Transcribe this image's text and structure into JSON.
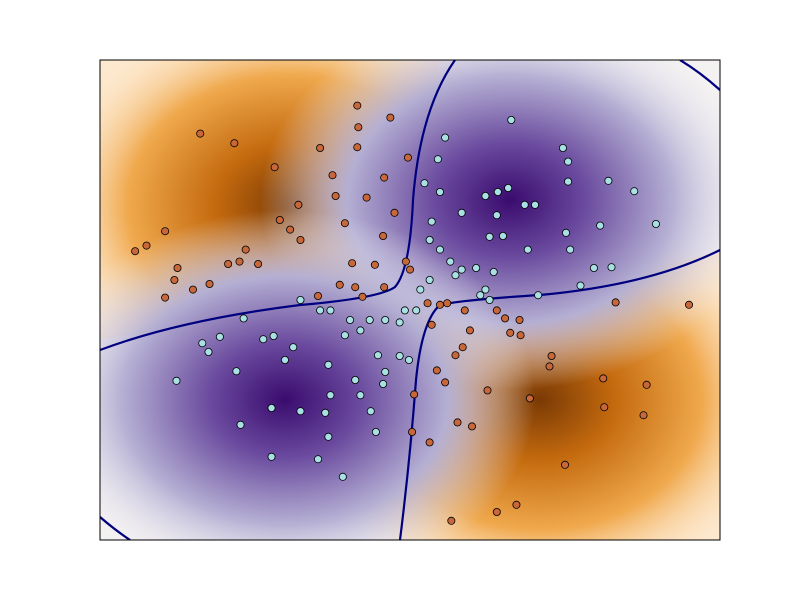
{
  "chart_data": {
    "type": "scatter",
    "xlim": [
      -3,
      3
    ],
    "ylim": [
      -3,
      3
    ],
    "series": [
      {
        "color": "#c8683a",
        "x": [
          -2.03,
          -1.7,
          -1.31,
          -0.87,
          -0.51,
          -0.5,
          -0.51,
          -0.19,
          -0.25,
          -0.02,
          -2.37,
          -2.66,
          -2.55,
          -2.25,
          -2.37,
          -2.28,
          -2.1,
          -1.94,
          -1.76,
          -1.65,
          -1.47,
          -1.59,
          -1.26,
          -1.16,
          -1.06,
          -1.08,
          -0.75,
          -0.72,
          -0.63,
          -0.42,
          -0.26,
          -0.15,
          -0.56,
          -0.53,
          -0.34,
          -0.68,
          -0.89,
          -0.46,
          -0.25,
          -0.04,
          0.0,
          0.29,
          0.53,
          0.58,
          0.84,
          0.92,
          1.06,
          0.51,
          0.44,
          0.26,
          0.34,
          0.75,
          1.16,
          1.37,
          1.35,
          1.87,
          2.29,
          2.26,
          1.88,
          2.7,
          1.99,
          1.5,
          1.03,
          0.84,
          0.4,
          0.6,
          0.46,
          0.19,
          0.02,
          0.04,
          0.97,
          1.07,
          0.21,
          0.17,
          0.36
        ],
        "y": [
          2.08,
          1.96,
          1.66,
          1.9,
          2.43,
          2.16,
          1.91,
          2.28,
          1.53,
          1.78,
          0.86,
          0.61,
          0.68,
          0.4,
          0.03,
          0.25,
          0.13,
          0.2,
          0.45,
          0.48,
          0.45,
          0.63,
          1.0,
          0.88,
          0.75,
          1.19,
          1.56,
          1.3,
          0.96,
          1.28,
          0.8,
          1.09,
          0.46,
          0.16,
          0.44,
          0.19,
          0.05,
          0.04,
          0.16,
          0.48,
          0.38,
          -0.06,
          -0.13,
          -0.38,
          -0.13,
          -0.23,
          -0.25,
          -0.59,
          -0.69,
          -0.88,
          -1.03,
          -1.13,
          -1.23,
          -0.7,
          -0.83,
          -0.98,
          -1.06,
          -1.44,
          -1.34,
          -0.06,
          -0.03,
          -2.06,
          -2.56,
          -2.65,
          -2.76,
          -1.58,
          -1.53,
          -1.78,
          -1.65,
          -1.18,
          -0.41,
          -0.44,
          -0.31,
          -0.04,
          -0.04
        ]
      },
      {
        "color": "#a9e0e3",
        "x": [
          0.98,
          0.34,
          1.48,
          1.53,
          0.27,
          0.14,
          0.29,
          1.53,
          1.92,
          2.17,
          2.38,
          1.84,
          1.51,
          0.95,
          0.85,
          0.73,
          1.11,
          1.21,
          0.84,
          0.5,
          0.21,
          0.77,
          0.9,
          1.14,
          1.55,
          1.78,
          1.95,
          1.65,
          1.24,
          0.81,
          0.64,
          0.5,
          0.29,
          0.19,
          0.39,
          0.44,
          0.68,
          0.77,
          0.73,
          -1.61,
          -2.01,
          -1.84,
          -1.95,
          -1.42,
          -1.32,
          -1.13,
          -1.21,
          -1.68,
          -2.26,
          -1.34,
          -1.64,
          -1.06,
          -0.82,
          -0.77,
          -0.79,
          -0.53,
          -0.48,
          -0.38,
          -0.33,
          -0.79,
          -1.34,
          -0.89,
          -0.65,
          -0.26,
          -0.24,
          -0.1,
          -0.01,
          -0.31,
          -0.63,
          -0.58,
          -0.48,
          -0.39,
          -0.24,
          -0.1,
          -0.05,
          0.06,
          0.1,
          0.19,
          -1.06,
          -0.87,
          -0.77
        ],
        "y": [
          2.25,
          2.03,
          1.9,
          1.73,
          1.76,
          1.46,
          1.35,
          1.48,
          1.49,
          1.36,
          0.95,
          0.93,
          0.84,
          1.4,
          1.35,
          1.3,
          1.19,
          1.19,
          1.06,
          1.09,
          0.98,
          0.79,
          0.8,
          0.63,
          0.63,
          0.4,
          0.41,
          0.18,
          0.06,
          0.35,
          0.4,
          0.38,
          0.63,
          0.75,
          0.48,
          0.31,
          0.06,
          0.0,
          0.13,
          -0.23,
          -0.54,
          -0.46,
          -0.65,
          -0.49,
          -0.45,
          -0.59,
          -0.75,
          -0.89,
          -1.01,
          -1.35,
          -1.56,
          -1.39,
          -1.41,
          -1.19,
          -0.81,
          -1.0,
          -1.19,
          -1.39,
          -1.65,
          -1.71,
          -1.96,
          -1.99,
          -2.21,
          -1.05,
          -0.9,
          -0.7,
          -0.75,
          -0.69,
          -0.44,
          -0.25,
          -0.38,
          -0.25,
          -0.25,
          -0.28,
          -0.13,
          -0.13,
          0.13,
          0.25,
          0.0,
          -0.13,
          -0.13
        ]
      }
    ]
  }
}
